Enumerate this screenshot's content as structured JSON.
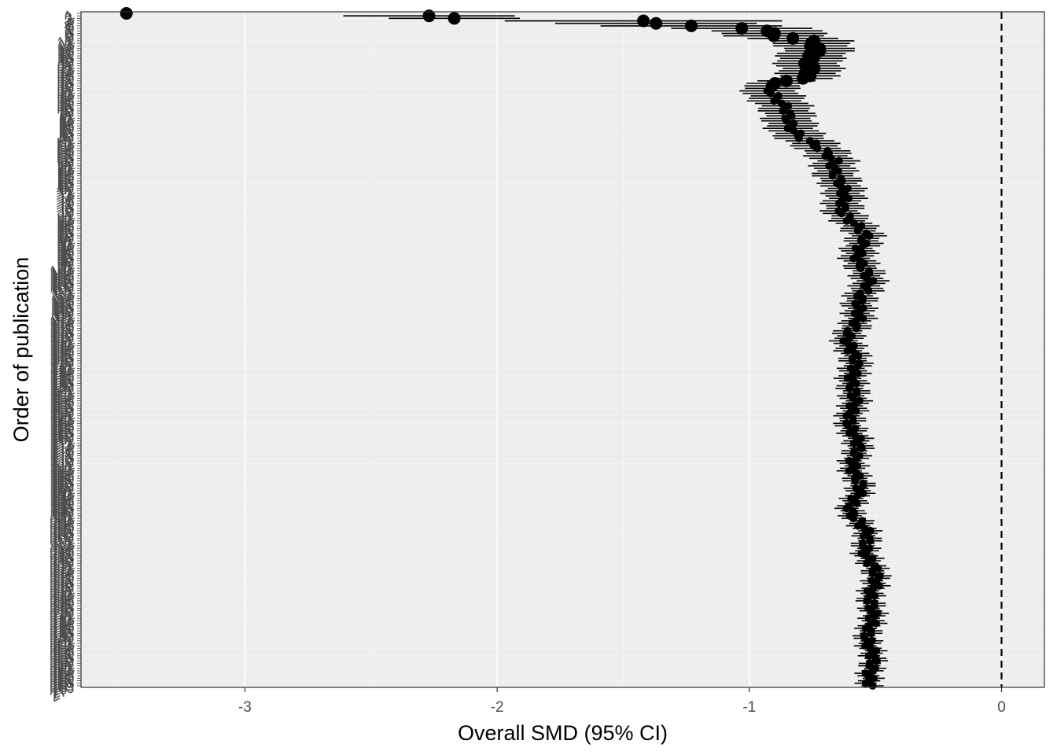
{
  "chart_data": {
    "type": "scatter",
    "subtype": "cumulative forest plot",
    "title": "",
    "xlabel": "Overall SMD (95% CI)",
    "ylabel": "Order of publication",
    "x_ticks": [
      -3,
      -2,
      -1,
      0
    ],
    "xlim": [
      -3.65,
      0.17
    ],
    "y_range": [
      1,
      270
    ],
    "y_reversed": true,
    "y_tick_labels_first": [
      1,
      2,
      3,
      4,
      5,
      6,
      7,
      8,
      9,
      10
    ],
    "y_tick_labels_last": 270,
    "y_tick_labels_note": "every integer 1–270 drawn as a rotated label; labels overlap into a dark band",
    "reference_line": {
      "x": 0,
      "style": "dashed"
    },
    "grid": true,
    "legend": "none",
    "colors": {
      "panel": "#ebebeb",
      "points": "#000000",
      "grid_minor": "#f5f5f5",
      "grid_major": "#ffffff"
    },
    "trend_profile": {
      "order": [
        1,
        2,
        3,
        4,
        5,
        6,
        7,
        8,
        10,
        12,
        15,
        20,
        26,
        30,
        35,
        40,
        50,
        60,
        70,
        80,
        90,
        100,
        110,
        120,
        130,
        140,
        150,
        160,
        170,
        180,
        190,
        200,
        210,
        220,
        230,
        240,
        250,
        260,
        270
      ],
      "smd": [
        -3.47,
        -2.27,
        -2.17,
        -1.42,
        -1.37,
        -1.23,
        -1.03,
        -0.93,
        -0.88,
        -0.75,
        -0.72,
        -0.78,
        -0.76,
        -0.91,
        -0.9,
        -0.86,
        -0.8,
        -0.66,
        -0.64,
        -0.62,
        -0.55,
        -0.56,
        -0.53,
        -0.57,
        -0.6,
        -0.59,
        -0.58,
        -0.6,
        -0.58,
        -0.58,
        -0.57,
        -0.59,
        -0.54,
        -0.52,
        -0.5,
        -0.52,
        -0.52,
        -0.52,
        -0.51
      ],
      "ci_halfwidth": [
        0.0,
        0.34,
        0.26,
        0.55,
        0.4,
        0.36,
        0.28,
        0.22,
        0.2,
        0.16,
        0.14,
        0.13,
        0.12,
        0.11,
        0.11,
        0.1,
        0.1,
        0.085,
        0.08,
        0.075,
        0.07,
        0.065,
        0.065,
        0.06,
        0.058,
        0.056,
        0.055,
        0.053,
        0.052,
        0.05,
        0.05,
        0.048,
        0.048,
        0.047,
        0.046,
        0.045,
        0.045,
        0.044,
        0.044
      ]
    },
    "n_studies": 270
  }
}
